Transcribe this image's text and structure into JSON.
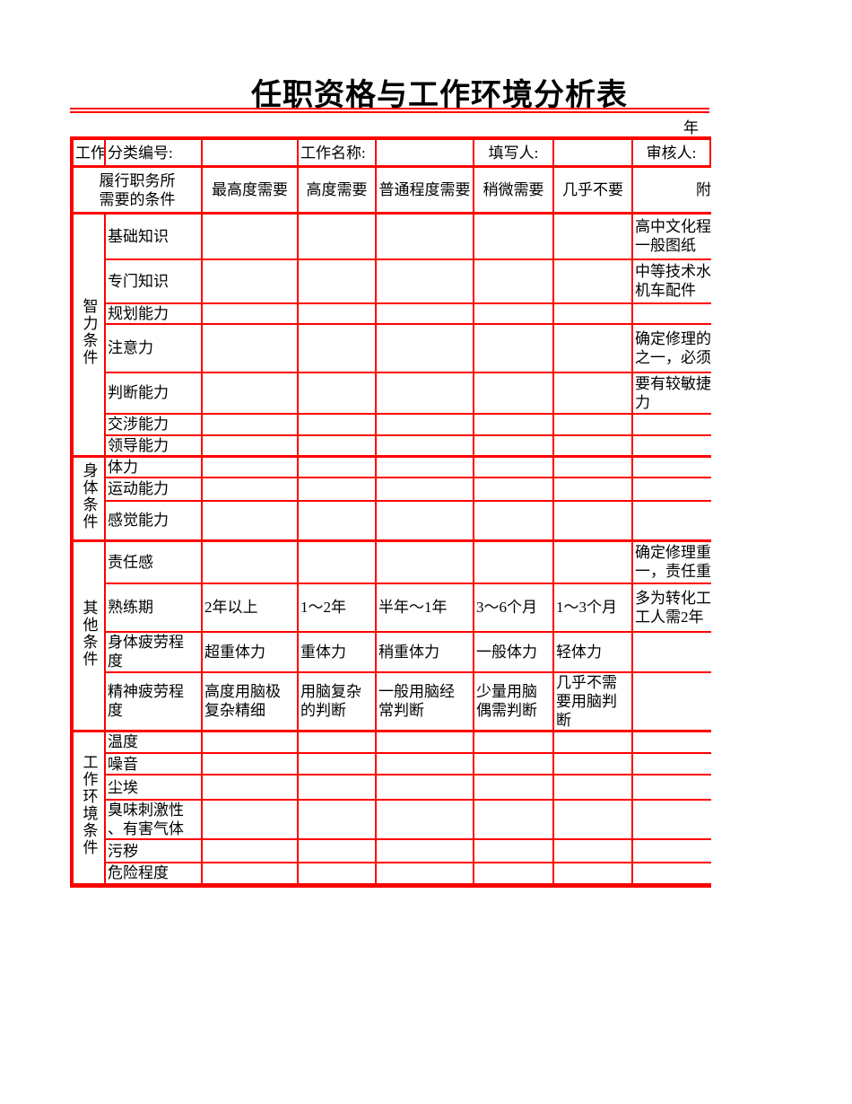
{
  "title": "任职资格与工作环境分析表",
  "year_label": "年",
  "info_row": {
    "col_work": "工作",
    "fields": [
      {
        "label": "分类编号:",
        "value": ""
      },
      {
        "label": "工作名称:",
        "value": ""
      },
      {
        "label": "填写人:",
        "value": ""
      },
      {
        "label": "审核人:",
        "value": ""
      }
    ]
  },
  "header": {
    "condition_header": "履行职务所\n需要的条件",
    "degree_columns": [
      "最高度需要",
      "高度需要",
      "普通程度需要",
      "稍微需要",
      "几乎不要"
    ],
    "remark_header": "附注"
  },
  "border_color": "#ff0000",
  "sections": [
    {
      "name": "智力条件",
      "rows": [
        {
          "label": "基础知识",
          "cells": [
            "",
            "",
            "",
            "",
            ""
          ],
          "remark": "高中文化程\n一般图纸"
        },
        {
          "label": "专门知识",
          "cells": [
            "",
            "",
            "",
            "",
            ""
          ],
          "remark": "中等技术水\n机车配件"
        },
        {
          "label": "规划能力",
          "cells": [
            "",
            "",
            "",
            "",
            ""
          ],
          "remark": ""
        },
        {
          "label": "注意力",
          "cells": [
            "",
            "",
            "",
            "",
            ""
          ],
          "remark": "确定修理的\n之一，必须"
        },
        {
          "label": "判断能力",
          "cells": [
            "",
            "",
            "",
            "",
            ""
          ],
          "remark": "要有较敏捷\n力"
        },
        {
          "label": "交涉能力",
          "cells": [
            "",
            "",
            "",
            "",
            ""
          ],
          "remark": ""
        },
        {
          "label": "领导能力",
          "cells": [
            "",
            "",
            "",
            "",
            ""
          ],
          "remark": ""
        }
      ]
    },
    {
      "name": "身体条件",
      "rows": [
        {
          "label": "体力",
          "cells": [
            "",
            "",
            "",
            "",
            ""
          ],
          "remark": ""
        },
        {
          "label": "运动能力",
          "cells": [
            "",
            "",
            "",
            "",
            ""
          ],
          "remark": ""
        },
        {
          "label": "感觉能力",
          "cells": [
            "",
            "",
            "",
            "",
            ""
          ],
          "remark": ""
        }
      ]
    },
    {
      "name": "其他条件",
      "rows": [
        {
          "label": "责任感",
          "cells": [
            "",
            "",
            "",
            "",
            ""
          ],
          "remark": "确定修理重\n一，责任重"
        },
        {
          "label": "熟练期",
          "cells": [
            "2年以上",
            "1～2年",
            "半年～1年",
            "3～6个月",
            "1～3个月"
          ],
          "remark": "多为转化工\n工人需2年"
        },
        {
          "label": "身体疲劳程\n度",
          "cells": [
            "超重体力",
            "重体力",
            "稍重体力",
            "一般体力",
            "轻体力"
          ],
          "remark": ""
        },
        {
          "label": "精神疲劳程\n度",
          "cells": [
            "高度用脑极\n复杂精细",
            "用脑复杂\n的判断",
            "一般用脑经\n常判断",
            "少量用脑\n偶需判断",
            "几乎不需\n要用脑判\n断"
          ],
          "remark": ""
        }
      ]
    },
    {
      "name": "工作环境条件",
      "rows": [
        {
          "label": "温度",
          "cells": [
            "",
            "",
            "",
            "",
            ""
          ],
          "remark": ""
        },
        {
          "label": "噪音",
          "cells": [
            "",
            "",
            "",
            "",
            ""
          ],
          "remark": ""
        },
        {
          "label": "尘埃",
          "cells": [
            "",
            "",
            "",
            "",
            ""
          ],
          "remark": ""
        },
        {
          "label": "臭味刺激性\n、有害气体",
          "cells": [
            "",
            "",
            "",
            "",
            ""
          ],
          "remark": ""
        },
        {
          "label": "污秽",
          "cells": [
            "",
            "",
            "",
            "",
            ""
          ],
          "remark": ""
        },
        {
          "label": "危险程度",
          "cells": [
            "",
            "",
            "",
            "",
            ""
          ],
          "remark": ""
        }
      ]
    }
  ]
}
